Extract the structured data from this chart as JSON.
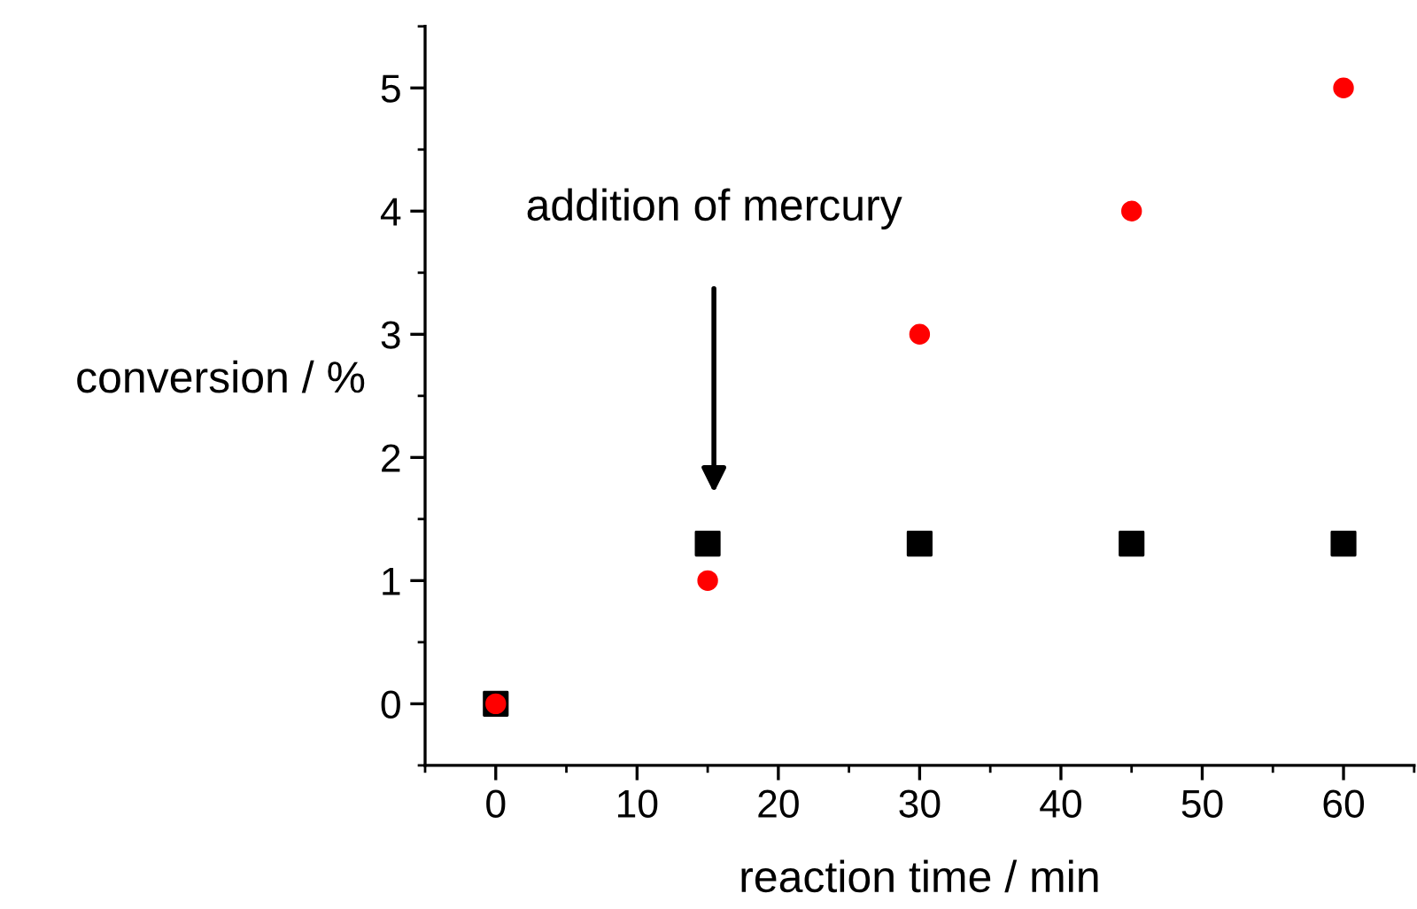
{
  "chart_data": {
    "type": "scatter",
    "xlabel": "reaction time / min",
    "ylabel": "conversion / %",
    "x": [
      0,
      15,
      30,
      45,
      60
    ],
    "series": [
      {
        "color": "#000000",
        "marker": "square",
        "values": [
          0,
          1.3,
          1.3,
          1.3,
          1.3
        ]
      },
      {
        "color": "#ff0000",
        "marker": "circle",
        "values": [
          0,
          1,
          3,
          4,
          5
        ]
      }
    ],
    "xlim": [
      -5,
      65
    ],
    "ylim": [
      -0.5,
      5.5
    ],
    "xticks": [
      0,
      10,
      20,
      30,
      40,
      50,
      60
    ],
    "yticks": [
      0,
      1,
      2,
      3,
      4,
      5
    ],
    "grid": false,
    "annotations": [
      "addition of mercury"
    ]
  }
}
